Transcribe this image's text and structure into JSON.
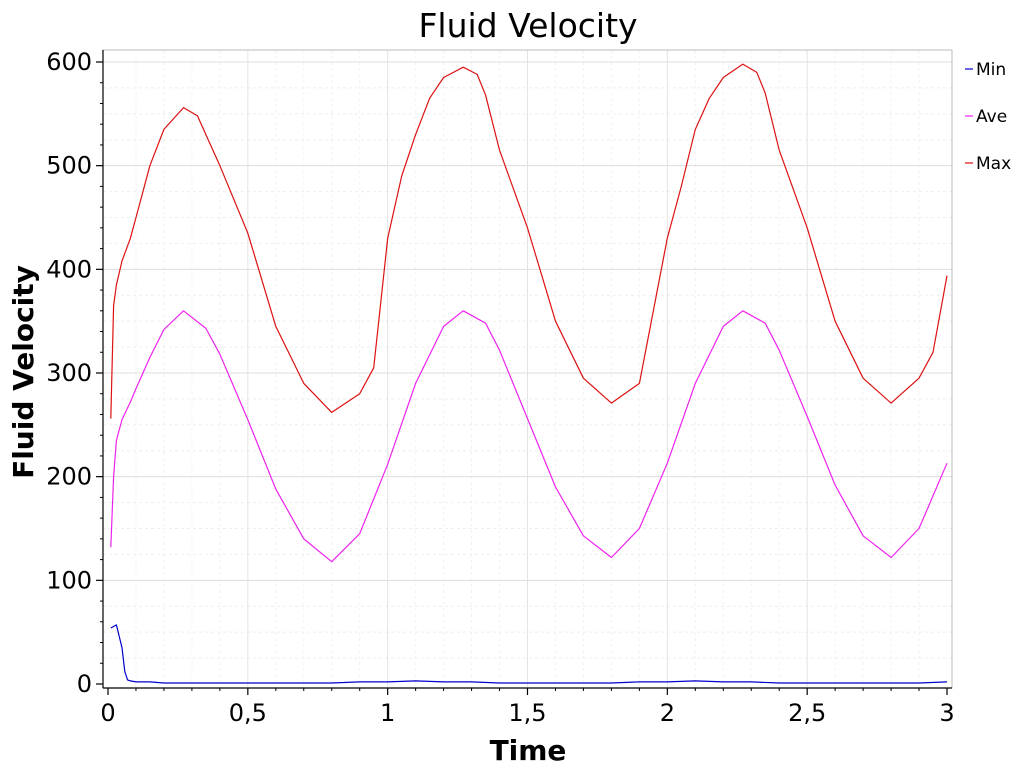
{
  "chart_data": {
    "type": "line",
    "title": "Fluid Velocity",
    "xlabel": "Time",
    "ylabel": "Fluid Velocity",
    "xlim": [
      0,
      3
    ],
    "ylim": [
      0,
      610
    ],
    "x_ticks": [
      {
        "value": 0,
        "label": "0"
      },
      {
        "value": 0.5,
        "label": "0,5"
      },
      {
        "value": 1,
        "label": "1"
      },
      {
        "value": 1.5,
        "label": "1,5"
      },
      {
        "value": 2,
        "label": "2"
      },
      {
        "value": 2.5,
        "label": "2,5"
      },
      {
        "value": 3,
        "label": "3"
      }
    ],
    "y_ticks": [
      {
        "value": 0,
        "label": "0"
      },
      {
        "value": 100,
        "label": "100"
      },
      {
        "value": 200,
        "label": "200"
      },
      {
        "value": 300,
        "label": "300"
      },
      {
        "value": 400,
        "label": "400"
      },
      {
        "value": 500,
        "label": "500"
      },
      {
        "value": 600,
        "label": "600"
      }
    ],
    "grid": true,
    "legend_position": "right",
    "series": [
      {
        "name": "Min",
        "color": "#0000cc",
        "x": [
          0.01,
          0.03,
          0.05,
          0.06,
          0.07,
          0.08,
          0.1,
          0.15,
          0.2,
          0.3,
          0.4,
          0.5,
          0.6,
          0.7,
          0.8,
          0.9,
          1.0,
          1.1,
          1.2,
          1.3,
          1.4,
          1.5,
          1.6,
          1.7,
          1.8,
          1.9,
          2.0,
          2.1,
          2.2,
          2.3,
          2.4,
          2.5,
          2.6,
          2.7,
          2.8,
          2.9,
          3.0
        ],
        "y": [
          54,
          57,
          35,
          12,
          4,
          3,
          2,
          2,
          1,
          1,
          1,
          1,
          1,
          1,
          1,
          2,
          2,
          3,
          2,
          2,
          1,
          1,
          1,
          1,
          1,
          2,
          2,
          3,
          2,
          2,
          1,
          1,
          1,
          1,
          1,
          1,
          2
        ]
      },
      {
        "name": "Ave",
        "color": "#ee22ee",
        "x": [
          0.01,
          0.02,
          0.03,
          0.05,
          0.08,
          0.1,
          0.15,
          0.2,
          0.27,
          0.35,
          0.4,
          0.5,
          0.6,
          0.7,
          0.8,
          0.9,
          1.0,
          1.1,
          1.2,
          1.27,
          1.35,
          1.4,
          1.5,
          1.6,
          1.7,
          1.8,
          1.9,
          2.0,
          2.1,
          2.2,
          2.27,
          2.35,
          2.4,
          2.5,
          2.6,
          2.7,
          2.8,
          2.9,
          3.0
        ],
        "y": [
          132,
          200,
          235,
          255,
          272,
          285,
          315,
          342,
          360,
          343,
          318,
          255,
          188,
          140,
          118,
          145,
          212,
          290,
          345,
          360,
          348,
          322,
          256,
          190,
          143,
          122,
          150,
          213,
          290,
          345,
          360,
          348,
          322,
          258,
          192,
          143,
          122,
          150,
          213
        ]
      },
      {
        "name": "Max",
        "color": "#dd1111",
        "x": [
          0.01,
          0.02,
          0.03,
          0.05,
          0.08,
          0.1,
          0.15,
          0.2,
          0.27,
          0.32,
          0.35,
          0.4,
          0.5,
          0.6,
          0.7,
          0.8,
          0.9,
          0.95,
          1.0,
          1.05,
          1.1,
          1.15,
          1.2,
          1.27,
          1.32,
          1.35,
          1.4,
          1.5,
          1.6,
          1.7,
          1.8,
          1.9,
          2.0,
          2.05,
          2.1,
          2.15,
          2.2,
          2.27,
          2.32,
          2.35,
          2.4,
          2.5,
          2.6,
          2.7,
          2.8,
          2.9,
          2.95,
          3.0
        ],
        "y": [
          256,
          365,
          385,
          408,
          430,
          450,
          500,
          535,
          556,
          548,
          530,
          500,
          435,
          345,
          290,
          262,
          280,
          305,
          430,
          490,
          530,
          565,
          585,
          595,
          588,
          568,
          515,
          440,
          350,
          295,
          271,
          290,
          430,
          480,
          535,
          565,
          585,
          598,
          590,
          570,
          515,
          440,
          350,
          295,
          271,
          295,
          320,
          394
        ]
      }
    ]
  }
}
